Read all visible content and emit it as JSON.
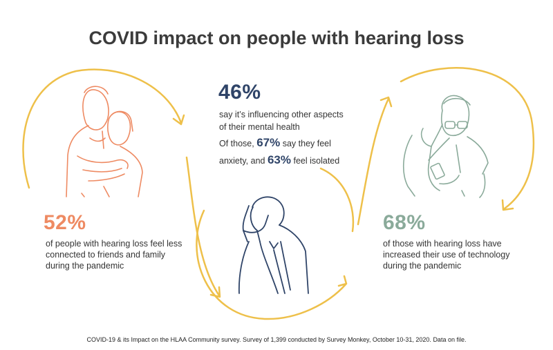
{
  "title": "COVID impact on people with hearing loss",
  "stats": {
    "left": {
      "value": "52%",
      "description": "of people with hearing loss feel less connected to friends and family during the pandemic"
    },
    "middle": {
      "value": "46%",
      "description": "say it’s influencing other aspects of their mental health",
      "detail_prefix": "Of those,",
      "detail_value_1": "67%",
      "detail_mid": "say they feel anxiety, and",
      "detail_value_2": "63%",
      "detail_suffix": "feel isolated"
    },
    "right": {
      "value": "68%",
      "description": "of those with hearing loss have increased their use of technology during the pandemic"
    }
  },
  "footnote": "COVID-19 & its Impact on the HLAA Community survey. Survey of 1,399 conducted by Survey Monkey, October 10-31, 2020. Data on file.",
  "colors": {
    "orange": "#ee8a62",
    "navy": "#2f4468",
    "sage": "#8aaa9a",
    "arrow": "#eec04a",
    "title": "#3b3b3b"
  },
  "illustrations": [
    "embracing-couple-icon",
    "stressed-man-icon",
    "man-with-phone-icon"
  ]
}
